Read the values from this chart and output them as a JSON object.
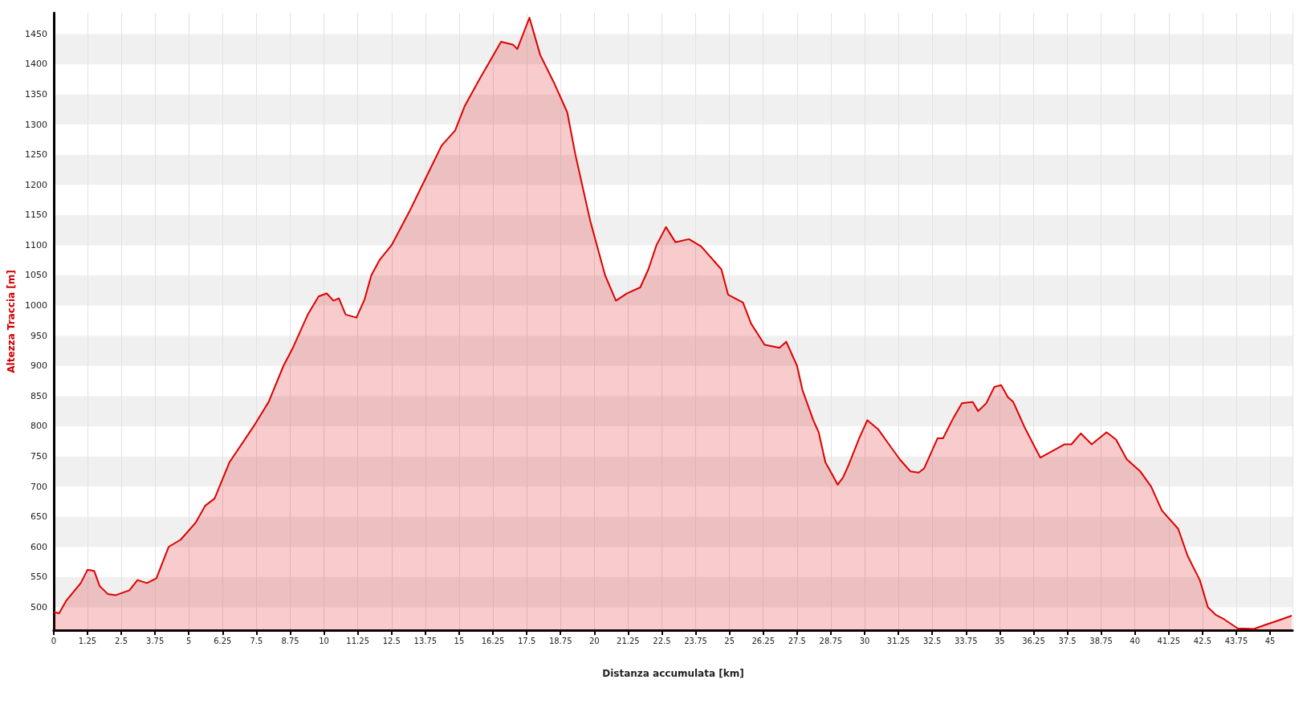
{
  "chart_data": {
    "type": "area",
    "xlabel": "Distanza accumulata [km]",
    "ylabel": "Altezza Traccia [m]",
    "xlim": [
      0,
      45.83
    ],
    "ylim": [
      462,
      1485
    ],
    "xticks": [
      0,
      1.25,
      2.5,
      3.75,
      5,
      6.25,
      7.5,
      8.75,
      10,
      11.25,
      12.5,
      13.75,
      15,
      16.25,
      17.5,
      18.75,
      20,
      21.25,
      22.5,
      23.75,
      25,
      26.25,
      27.5,
      28.75,
      30,
      31.25,
      32.5,
      33.75,
      35,
      36.25,
      37.5,
      38.75,
      40,
      41.25,
      42.5,
      43.75,
      45
    ],
    "yticks": [
      500,
      550,
      600,
      650,
      700,
      750,
      800,
      850,
      900,
      950,
      1000,
      1050,
      1100,
      1150,
      1200,
      1250,
      1300,
      1350,
      1400,
      1450
    ],
    "grid": true,
    "marker": "none",
    "line_style": "solid",
    "series": [
      {
        "color": "#dd0000",
        "x": [
          0,
          0.2,
          0.45,
          1.0,
          1.25,
          1.5,
          1.7,
          2.0,
          2.3,
          2.8,
          3.1,
          3.45,
          3.8,
          4.25,
          4.7,
          5.25,
          5.6,
          5.95,
          6.5,
          7.4,
          7.95,
          8.5,
          8.85,
          9.4,
          9.8,
          10.1,
          10.35,
          10.55,
          10.8,
          11.2,
          11.5,
          11.75,
          12.05,
          12.5,
          13.15,
          13.75,
          14.35,
          14.85,
          15.2,
          15.75,
          16.2,
          16.55,
          17.0,
          17.15,
          17.6,
          18.0,
          18.5,
          19.0,
          19.3,
          19.85,
          20.4,
          20.8,
          21.2,
          21.7,
          22.0,
          22.3,
          22.65,
          23.0,
          23.5,
          23.95,
          24.7,
          24.95,
          25.5,
          25.8,
          26.3,
          26.85,
          27.1,
          27.5,
          27.7,
          28.1,
          28.3,
          28.55,
          28.8,
          29.0,
          29.2,
          29.4,
          29.8,
          30.1,
          30.5,
          30.9,
          31.3,
          31.7,
          32.0,
          32.2,
          32.7,
          32.9,
          33.3,
          33.6,
          34.0,
          34.2,
          34.5,
          34.8,
          35.05,
          35.3,
          35.5,
          35.9,
          36.3,
          36.5,
          37.0,
          37.4,
          37.65,
          38.0,
          38.4,
          38.95,
          39.3,
          39.7,
          40.2,
          40.6,
          41.0,
          41.6,
          41.95,
          42.4,
          42.7,
          43.0,
          43.3,
          43.8,
          44.4,
          44.9,
          45.3,
          45.8
        ],
        "values": [
          492,
          490,
          510,
          540,
          562,
          560,
          535,
          522,
          520,
          528,
          545,
          540,
          548,
          600,
          612,
          640,
          668,
          680,
          740,
          800,
          840,
          900,
          930,
          985,
          1015,
          1020,
          1008,
          1012,
          985,
          980,
          1010,
          1050,
          1075,
          1100,
          1155,
          1210,
          1265,
          1290,
          1330,
          1375,
          1410,
          1437,
          1432,
          1425,
          1477,
          1415,
          1370,
          1320,
          1250,
          1140,
          1050,
          1008,
          1020,
          1030,
          1060,
          1100,
          1130,
          1105,
          1110,
          1098,
          1060,
          1018,
          1005,
          970,
          935,
          930,
          940,
          900,
          860,
          810,
          790,
          740,
          720,
          703,
          715,
          735,
          780,
          810,
          795,
          770,
          745,
          725,
          723,
          730,
          780,
          780,
          815,
          838,
          840,
          825,
          838,
          865,
          868,
          848,
          840,
          800,
          765,
          748,
          760,
          770,
          770,
          788,
          770,
          790,
          778,
          745,
          725,
          700,
          660,
          630,
          585,
          545,
          500,
          487,
          480,
          465,
          464,
          472,
          478,
          486
        ]
      }
    ]
  }
}
